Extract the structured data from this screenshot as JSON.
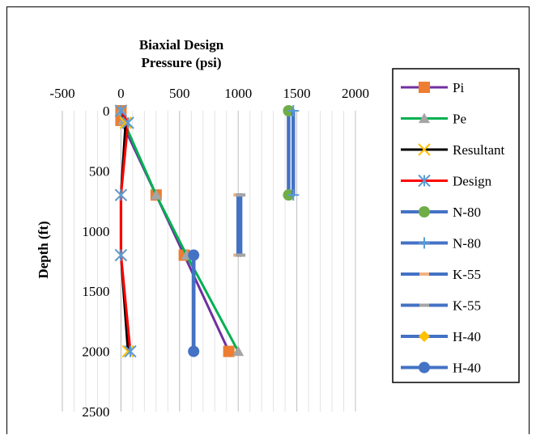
{
  "chart_data": {
    "type": "line",
    "title": "Biaxial Design Pressure (psi)",
    "title_lines": [
      "Biaxial Design",
      "Pressure (psi)"
    ],
    "xlabel": "Biaxial Design Pressure (psi)",
    "ylabel": "Depth (ft)",
    "xlim": [
      -500,
      2000
    ],
    "ylim": [
      0,
      2500
    ],
    "y_reversed": true,
    "x_axis_position": "top",
    "x_ticks": [
      -500,
      0,
      500,
      1000,
      1500,
      2000
    ],
    "y_ticks": [
      0,
      500,
      1000,
      1500,
      2000,
      2500
    ],
    "grid": "vertical",
    "legend_position": "right",
    "series": [
      {
        "name": "Pi",
        "color": "#7030A0",
        "marker": "square",
        "marker_color": "#ED7D31",
        "points": [
          [
            0,
            0
          ],
          [
            0,
            80
          ],
          [
            300,
            700
          ],
          [
            540,
            1200
          ],
          [
            920,
            2000
          ]
        ]
      },
      {
        "name": "Pe",
        "color": "#00B050",
        "marker": "triangle",
        "marker_color": "#A5A5A5",
        "points": [
          [
            0,
            0
          ],
          [
            20,
            80
          ],
          [
            300,
            700
          ],
          [
            560,
            1200
          ],
          [
            1000,
            2000
          ]
        ]
      },
      {
        "name": "Resultant",
        "color": "#000000",
        "marker": "x",
        "marker_color": "#FFC000",
        "points": [
          [
            0,
            0
          ],
          [
            40,
            100
          ],
          [
            0,
            700
          ],
          [
            0,
            1200
          ],
          [
            60,
            2000
          ]
        ]
      },
      {
        "name": "Design",
        "color": "#FF0000",
        "marker": "asterisk",
        "marker_color": "#5B9BD5",
        "points": [
          [
            0,
            0
          ],
          [
            60,
            100
          ],
          [
            0,
            700
          ],
          [
            0,
            1200
          ],
          [
            80,
            2000
          ]
        ]
      },
      {
        "name": "N-80",
        "color": "#4472C4",
        "marker": "circle",
        "marker_color": "#70AD47",
        "points": [
          [
            1430,
            0
          ],
          [
            1430,
            700
          ]
        ]
      },
      {
        "name": "N-80",
        "color": "#4472C4",
        "marker": "plus",
        "marker_color": "#5B9BD5",
        "points": [
          [
            1470,
            0
          ],
          [
            1470,
            700
          ]
        ]
      },
      {
        "name": "K-55",
        "color": "#4472C4",
        "marker": "dash",
        "marker_color": "#F4B183",
        "points": [
          [
            1000,
            700
          ],
          [
            1000,
            1200
          ]
        ]
      },
      {
        "name": "K-55",
        "color": "#4472C4",
        "marker": "dash",
        "marker_color": "#A5A5A5",
        "points": [
          [
            1020,
            700
          ],
          [
            1020,
            1200
          ]
        ]
      },
      {
        "name": "H-40",
        "color": "#4472C4",
        "marker": "diamond",
        "marker_color": "#FFC000",
        "points": [
          [
            620,
            1200
          ],
          [
            620,
            2000
          ]
        ]
      },
      {
        "name": "H-40",
        "color": "#4472C4",
        "marker": "circle",
        "marker_color": "#4472C4",
        "points": [
          [
            620,
            1200
          ],
          [
            620,
            2000
          ]
        ]
      }
    ]
  }
}
